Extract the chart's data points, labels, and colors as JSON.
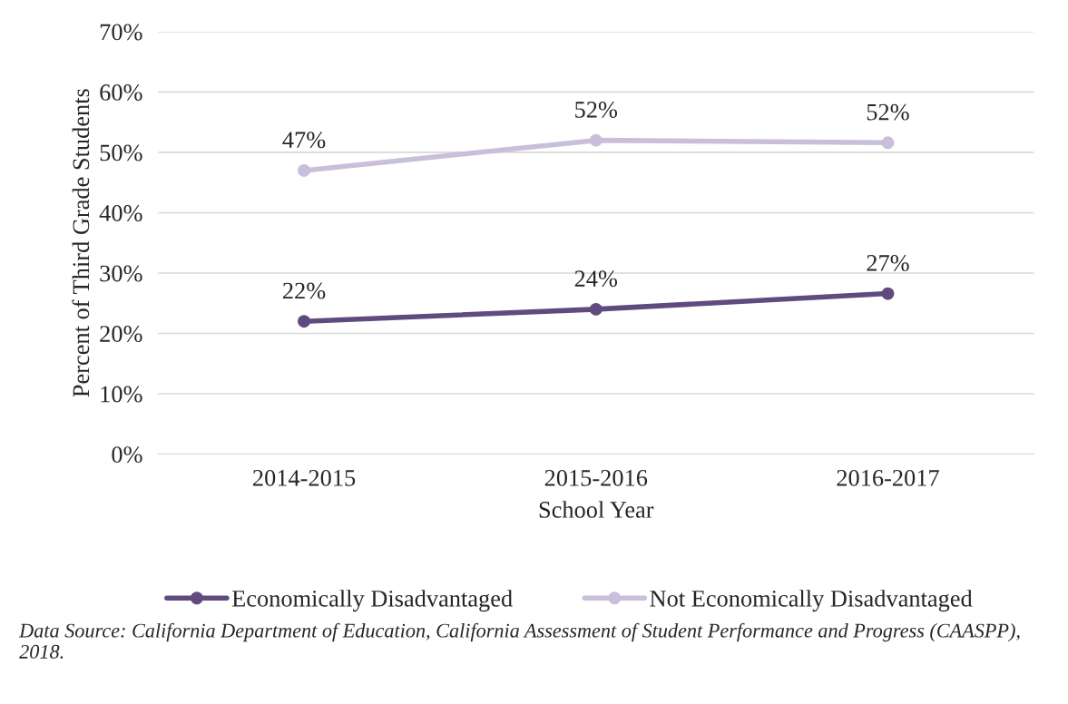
{
  "chart_data": {
    "type": "line",
    "xlabel": "School Year",
    "ylabel": "Percent of Third Grade Students",
    "categories": [
      "2014-2015",
      "2015-2016",
      "2016-2017"
    ],
    "series": [
      {
        "name": "Economically Disadvantaged",
        "color": "#5f4b7e",
        "values": [
          22,
          24,
          26.6
        ],
        "value_labels": [
          "22%",
          "24%",
          "27%"
        ]
      },
      {
        "name": "Not Economically Disadvantaged",
        "color": "#c9bfdb",
        "values": [
          47,
          52,
          51.6
        ],
        "value_labels": [
          "47%",
          "52%",
          "52%"
        ]
      }
    ],
    "ylim": [
      0,
      70
    ],
    "yticks": [
      {
        "value": 0,
        "label": "0%"
      },
      {
        "value": 10,
        "label": "10%"
      },
      {
        "value": 20,
        "label": "20%"
      },
      {
        "value": 30,
        "label": "30%"
      },
      {
        "value": 40,
        "label": "40%"
      },
      {
        "value": 50,
        "label": "50%"
      },
      {
        "value": 60,
        "label": "60%"
      },
      {
        "value": 70,
        "label": "70%"
      }
    ],
    "grid": "y",
    "legend": "bottom",
    "marker": "circle",
    "line_style": "solid",
    "annotations": [
      "Data Source: California Department of Education, California Assessment of Student Performance and Progress (CAASPP), 2018."
    ]
  }
}
